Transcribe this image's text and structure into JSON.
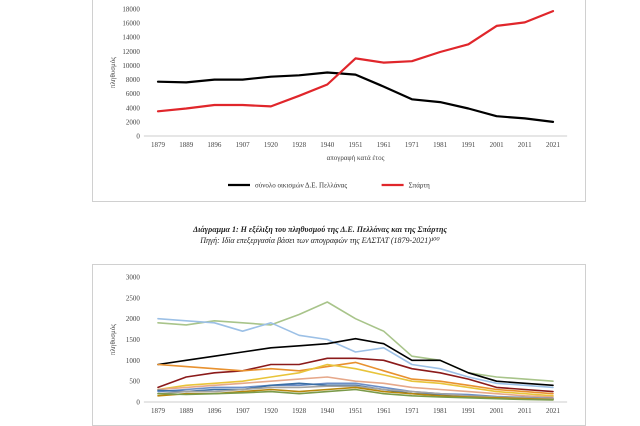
{
  "chart_data": [
    {
      "type": "line",
      "categories": [
        "1879",
        "1889",
        "1896",
        "1907",
        "1920",
        "1928",
        "1940",
        "1951",
        "1961",
        "1971",
        "1981",
        "1991",
        "2001",
        "2011",
        "2021"
      ],
      "series": [
        {
          "name": "σύνολο οικισμών Δ.Ε. Πελλάνας",
          "color": "#000000",
          "values": [
            7700,
            7600,
            8000,
            8000,
            8400,
            8600,
            9000,
            8700,
            7000,
            5200,
            4800,
            3900,
            2800,
            2500,
            2000
          ]
        },
        {
          "name": "Σπάρτη",
          "color": "#e0262b",
          "values": [
            3500,
            3900,
            4400,
            4400,
            4200,
            5700,
            7300,
            11000,
            10400,
            10600,
            11900,
            13000,
            15600,
            16100,
            17700
          ]
        }
      ],
      "xlabel": "απογραφή κατά έτος",
      "ylabel": "πληθυσμός",
      "ylim": [
        0,
        18000
      ],
      "yticks": [
        0,
        2000,
        4000,
        6000,
        8000,
        10000,
        12000,
        14000,
        16000,
        18000
      ],
      "grid": false,
      "legend": "bottom"
    },
    {
      "type": "line",
      "categories": [
        "1879",
        "1889",
        "1896",
        "1907",
        "1920",
        "1928",
        "1940",
        "1951",
        "1961",
        "1971",
        "1981",
        "1991",
        "2001",
        "2011",
        "2021"
      ],
      "series": [
        {
          "color": "#a8c48a",
          "values": [
            1900,
            1850,
            1950,
            1900,
            1850,
            2100,
            2400,
            2000,
            1700,
            1100,
            1000,
            700,
            600,
            550,
            500
          ]
        },
        {
          "color": "#9cc0e6",
          "values": [
            2000,
            1950,
            1900,
            1700,
            1900,
            1600,
            1500,
            1200,
            1300,
            900,
            800,
            600,
            450,
            400,
            350
          ]
        },
        {
          "color": "#000000",
          "values": [
            900,
            1000,
            1100,
            1200,
            1300,
            1350,
            1400,
            1520,
            1400,
            1000,
            1000,
            700,
            500,
            450,
            400
          ]
        },
        {
          "color": "#8b1a1a",
          "values": [
            350,
            600,
            700,
            750,
            900,
            900,
            1050,
            1050,
            1000,
            800,
            700,
            550,
            350,
            300,
            250
          ]
        },
        {
          "color": "#e8912f",
          "values": [
            900,
            850,
            800,
            750,
            800,
            750,
            850,
            950,
            750,
            550,
            500,
            400,
            300,
            250,
            200
          ]
        },
        {
          "color": "#e8c43a",
          "values": [
            300,
            400,
            450,
            500,
            600,
            700,
            900,
            800,
            650,
            500,
            450,
            350,
            250,
            200,
            150
          ]
        },
        {
          "color": "#e6a88a",
          "values": [
            300,
            350,
            400,
            450,
            500,
            550,
            600,
            500,
            450,
            350,
            300,
            250,
            200,
            150,
            120
          ]
        },
        {
          "color": "#6d8fc7",
          "values": [
            250,
            300,
            350,
            350,
            400,
            400,
            450,
            450,
            350,
            250,
            200,
            180,
            130,
            110,
            90
          ]
        },
        {
          "color": "#3a6ea5",
          "values": [
            280,
            250,
            300,
            300,
            400,
            450,
            400,
            400,
            300,
            200,
            180,
            150,
            120,
            100,
            80
          ]
        },
        {
          "color": "#a4a4a4",
          "values": [
            200,
            250,
            250,
            300,
            350,
            350,
            380,
            380,
            300,
            250,
            200,
            150,
            120,
            100,
            80
          ]
        },
        {
          "color": "#b8860b",
          "values": [
            150,
            200,
            200,
            250,
            300,
            250,
            300,
            350,
            250,
            200,
            150,
            120,
            100,
            80,
            60
          ]
        },
        {
          "color": "#7a9a4a",
          "values": [
            200,
            180,
            200,
            220,
            250,
            200,
            250,
            300,
            200,
            150,
            120,
            100,
            80,
            60,
            50
          ]
        }
      ],
      "xlabel": "",
      "ylabel": "πληθυσμός",
      "ylim": [
        0,
        3000
      ],
      "yticks": [
        0,
        500,
        1000,
        1500,
        2000,
        2500,
        3000
      ],
      "grid": false
    }
  ],
  "caption": {
    "title": "Διάγραμμα 1: Η εξέλιξη του πληθυσμού της Δ.Ε. Πελλάνας και της Σπάρτης",
    "source": "Πηγή: Ιδία επεξεργασία βάσει των απογραφών της ΕΛΣΤΑΤ (1879-2021)¹⁰⁰"
  }
}
